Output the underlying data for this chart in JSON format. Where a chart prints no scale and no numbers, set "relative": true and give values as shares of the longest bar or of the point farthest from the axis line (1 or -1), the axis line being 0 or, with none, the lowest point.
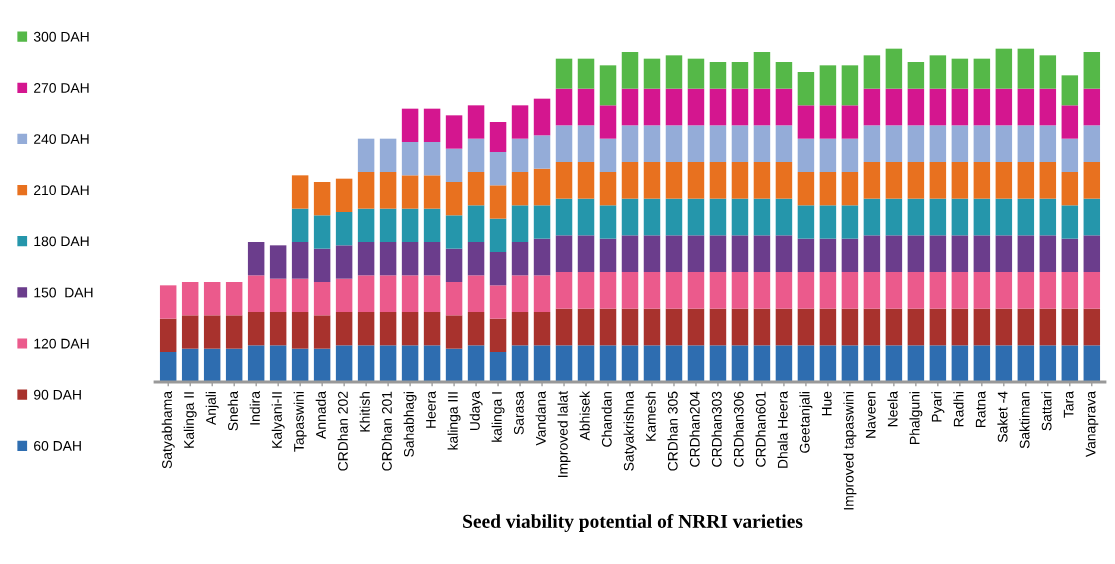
{
  "chart_data": {
    "type": "bar",
    "stacked": true,
    "relative": true,
    "legend": "left",
    "grid": false,
    "xlabel": "Seed viability potential of NRRI varieties",
    "categories": [
      "Satyabhama",
      "Kalinga II",
      "Anjali",
      "Sneha",
      "Indira",
      "Kalyani-II",
      "Tapaswini",
      "Annada",
      "CRDhan 202",
      "Khitish",
      "CRDhan 201",
      "Sahabhagi",
      "Heera",
      "kalinga III",
      "Udaya",
      "kalinga I",
      "Sarasa",
      "Vandana",
      "Improved lalat",
      "Abhisek",
      "Chandan",
      "Satyakrishna",
      "Kamesh",
      "CRDhan 305",
      "CRDhan204",
      "CRDhan303",
      "CRDhan306",
      "CRDhan601",
      "Dhala Heera",
      "Geetanjali",
      "Hue",
      "Improved tapaswini",
      "Naveen",
      "Neela",
      "Phalguni",
      "Pyari",
      "Radhi",
      "Ratna",
      "Saket -4",
      "Saktiman",
      "Sattari",
      "Tara",
      "Vanaprava"
    ],
    "series": [
      {
        "name": "60 DAH",
        "color": "#2e6db0",
        "values": [
          0.09,
          0.1,
          0.1,
          0.1,
          0.11,
          0.11,
          0.1,
          0.1,
          0.11,
          0.11,
          0.11,
          0.11,
          0.11,
          0.1,
          0.11,
          0.09,
          0.11,
          0.11,
          0.11,
          0.11,
          0.11,
          0.11,
          0.11,
          0.11,
          0.11,
          0.11,
          0.11,
          0.11,
          0.11,
          0.11,
          0.11,
          0.11,
          0.11,
          0.11,
          0.11,
          0.11,
          0.11,
          0.11,
          0.11,
          0.11,
          0.11,
          0.11,
          0.11
        ]
      },
      {
        "name": "90 DAH",
        "color": "#a8322d",
        "values": [
          0.1,
          0.1,
          0.1,
          0.1,
          0.1,
          0.1,
          0.11,
          0.1,
          0.1,
          0.1,
          0.1,
          0.1,
          0.1,
          0.1,
          0.1,
          0.1,
          0.1,
          0.1,
          0.11,
          0.11,
          0.11,
          0.11,
          0.11,
          0.11,
          0.11,
          0.11,
          0.11,
          0.11,
          0.11,
          0.11,
          0.11,
          0.11,
          0.11,
          0.11,
          0.11,
          0.11,
          0.11,
          0.11,
          0.11,
          0.11,
          0.11,
          0.11,
          0.11
        ]
      },
      {
        "name": "120 DAH",
        "color": "#eb5a8c",
        "values": [
          0.1,
          0.1,
          0.1,
          0.1,
          0.11,
          0.1,
          0.1,
          0.1,
          0.1,
          0.11,
          0.11,
          0.11,
          0.11,
          0.1,
          0.11,
          0.1,
          0.11,
          0.11,
          0.11,
          0.11,
          0.11,
          0.11,
          0.11,
          0.11,
          0.11,
          0.11,
          0.11,
          0.11,
          0.11,
          0.11,
          0.11,
          0.11,
          0.11,
          0.11,
          0.11,
          0.11,
          0.11,
          0.11,
          0.11,
          0.11,
          0.11,
          0.11,
          0.11
        ]
      },
      {
        "name": "150  DAH",
        "color": "#6b3d8c",
        "values": [
          null,
          null,
          null,
          null,
          0.1,
          0.1,
          0.11,
          0.1,
          0.1,
          0.1,
          0.1,
          0.1,
          0.1,
          0.1,
          0.1,
          0.1,
          0.1,
          0.11,
          0.11,
          0.11,
          0.1,
          0.11,
          0.11,
          0.11,
          0.11,
          0.11,
          0.11,
          0.11,
          0.11,
          0.1,
          0.1,
          0.1,
          0.11,
          0.11,
          0.11,
          0.11,
          0.11,
          0.11,
          0.11,
          0.11,
          0.11,
          0.1,
          0.11
        ]
      },
      {
        "name": "180 DAH",
        "color": "#2596ab",
        "values": [
          null,
          null,
          null,
          null,
          null,
          null,
          0.1,
          0.1,
          0.1,
          0.1,
          0.1,
          0.1,
          0.1,
          0.1,
          0.11,
          0.1,
          0.11,
          0.1,
          0.11,
          0.11,
          0.1,
          0.11,
          0.11,
          0.11,
          0.11,
          0.11,
          0.11,
          0.11,
          0.11,
          0.1,
          0.1,
          0.1,
          0.11,
          0.11,
          0.11,
          0.11,
          0.11,
          0.11,
          0.11,
          0.11,
          0.11,
          0.1,
          0.11
        ]
      },
      {
        "name": "210 DAH",
        "color": "#e8711f",
        "values": [
          null,
          null,
          null,
          null,
          null,
          null,
          0.1,
          0.1,
          0.1,
          0.11,
          0.11,
          0.1,
          0.1,
          0.1,
          0.1,
          0.1,
          0.1,
          0.11,
          0.11,
          0.11,
          0.1,
          0.11,
          0.11,
          0.11,
          0.11,
          0.11,
          0.11,
          0.11,
          0.11,
          0.1,
          0.1,
          0.1,
          0.11,
          0.11,
          0.11,
          0.11,
          0.11,
          0.11,
          0.11,
          0.11,
          0.11,
          0.1,
          0.11
        ]
      },
      {
        "name": "240 DAH",
        "color": "#94acd8",
        "values": [
          null,
          null,
          null,
          null,
          null,
          null,
          null,
          null,
          null,
          0.1,
          0.1,
          0.1,
          0.1,
          0.1,
          0.1,
          0.1,
          0.1,
          0.1,
          0.11,
          0.11,
          0.1,
          0.11,
          0.11,
          0.11,
          0.11,
          0.11,
          0.11,
          0.11,
          0.11,
          0.1,
          0.1,
          0.1,
          0.11,
          0.11,
          0.11,
          0.11,
          0.11,
          0.11,
          0.11,
          0.11,
          0.11,
          0.1,
          0.11
        ]
      },
      {
        "name": "270 DAH",
        "color": "#d4168f",
        "values": [
          null,
          null,
          null,
          null,
          null,
          null,
          null,
          null,
          null,
          null,
          null,
          0.1,
          0.1,
          0.1,
          0.1,
          0.09,
          0.1,
          0.11,
          0.11,
          0.11,
          0.1,
          0.11,
          0.11,
          0.11,
          0.11,
          0.11,
          0.11,
          0.11,
          0.11,
          0.1,
          0.1,
          0.1,
          0.11,
          0.11,
          0.11,
          0.11,
          0.11,
          0.11,
          0.11,
          0.11,
          0.11,
          0.1,
          0.11
        ]
      },
      {
        "name": "300 DAH",
        "color": "#55b848",
        "values": [
          null,
          null,
          null,
          null,
          null,
          null,
          null,
          null,
          null,
          null,
          null,
          null,
          null,
          null,
          null,
          null,
          null,
          null,
          0.09,
          0.09,
          0.12,
          0.11,
          0.09,
          0.1,
          0.09,
          0.08,
          0.08,
          0.11,
          0.08,
          0.1,
          0.12,
          0.12,
          0.1,
          0.12,
          0.08,
          0.1,
          0.09,
          0.09,
          0.12,
          0.12,
          0.1,
          0.09,
          0.11
        ]
      }
    ]
  }
}
